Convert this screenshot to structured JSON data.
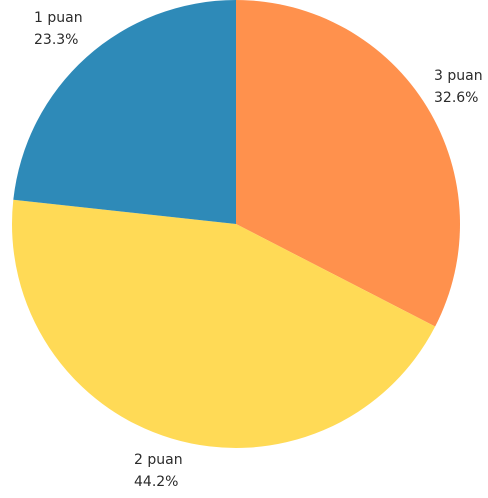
{
  "chart_data": {
    "type": "pie",
    "categories": [
      "3 puan",
      "2 puan",
      "1 puan"
    ],
    "values": [
      32.6,
      44.2,
      23.3
    ],
    "labels": [
      "32.6%",
      "44.2%",
      "23.3%"
    ],
    "colors": [
      "#FF914D",
      "#FFDA56",
      "#2E8AB8"
    ],
    "start_angle_deg": 0,
    "direction": "clockwise"
  }
}
